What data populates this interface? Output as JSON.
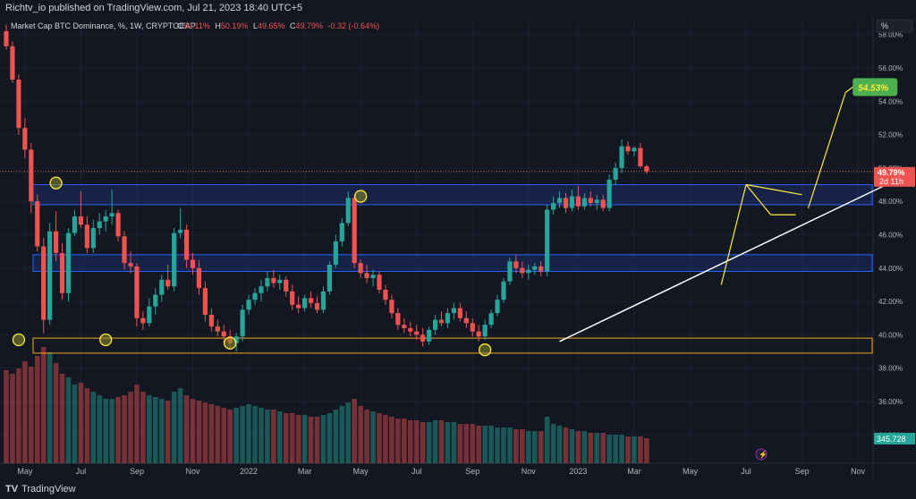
{
  "header": {
    "publisher": "Richtv_io published on TradingView.com, Jul 21, 2023 18:40 UTC+5"
  },
  "legend": {
    "symbol": "Market Cap BTC Dominance, %, 1W, CRYPTOCAP",
    "o_label": "O",
    "o_value": "50.11%",
    "h_label": "H",
    "h_value": "50.19%",
    "l_label": "L",
    "l_value": "49.65%",
    "c_label": "C",
    "c_value": "49.79%",
    "change": "-0.32 (-0.64%)"
  },
  "scale": {
    "unit_label": "%"
  },
  "footer": {
    "brand_mark": "TV",
    "brand": "TradingView"
  },
  "colors": {
    "background": "#131722",
    "up": "#26a69a",
    "down": "#ef5350",
    "zone_fill": "#1e3a8a",
    "zone_border": "#2962ff",
    "support_border": "#f5a623",
    "label_green": "#4caf50"
  },
  "chart_data": {
    "type": "candlestick",
    "timeframe": "1W",
    "ylim": [
      32.3,
      59.0
    ],
    "y_ticks": [
      "58.00%",
      "56.00%",
      "54.00%",
      "52.00%",
      "50.00%",
      "48.00%",
      "46.00%",
      "44.00%",
      "42.00%",
      "40.00%",
      "38.00%",
      "36.00%",
      "34.00%"
    ],
    "y_tick_values": [
      58,
      56,
      54,
      52,
      50,
      48,
      46,
      44,
      42,
      40,
      38,
      36,
      34
    ],
    "x_labels": [
      {
        "label": "May",
        "bar": 3
      },
      {
        "label": "Jul",
        "bar": 12
      },
      {
        "label": "Sep",
        "bar": 21
      },
      {
        "label": "Nov",
        "bar": 30
      },
      {
        "label": "2022",
        "bar": 39
      },
      {
        "label": "Mar",
        "bar": 48
      },
      {
        "label": "May",
        "bar": 57
      },
      {
        "label": "Jul",
        "bar": 66
      },
      {
        "label": "Sep",
        "bar": 75
      },
      {
        "label": "Nov",
        "bar": 84
      },
      {
        "label": "2023",
        "bar": 92
      },
      {
        "label": "Mar",
        "bar": 101
      },
      {
        "label": "May",
        "bar": 110
      },
      {
        "label": "Jul",
        "bar": 119
      },
      {
        "label": "Sep",
        "bar": 128
      },
      {
        "label": "Nov",
        "bar": 137
      }
    ],
    "last_price_label": "49.79%",
    "countdown_label": "2d 11h",
    "volume_label": "345.728",
    "target_label": "54.53%",
    "candles": [
      [
        58.2,
        58.6,
        57.1,
        57.3
      ],
      [
        57.3,
        57.6,
        55.1,
        55.3
      ],
      [
        55.3,
        55.6,
        52.0,
        52.4
      ],
      [
        52.4,
        53.0,
        50.6,
        51.1
      ],
      [
        51.1,
        51.5,
        47.3,
        48.0
      ],
      [
        48.0,
        48.4,
        45.0,
        45.3
      ],
      [
        45.3,
        45.8,
        40.1,
        40.9
      ],
      [
        40.9,
        46.7,
        40.6,
        46.2
      ],
      [
        46.2,
        47.4,
        44.4,
        44.9
      ],
      [
        44.9,
        45.5,
        42.1,
        42.5
      ],
      [
        42.5,
        46.4,
        42.0,
        46.1
      ],
      [
        46.1,
        47.5,
        45.9,
        47.1
      ],
      [
        47.1,
        48.6,
        46.4,
        46.6
      ],
      [
        46.6,
        47.1,
        44.9,
        45.2
      ],
      [
        45.2,
        46.9,
        44.9,
        46.4
      ],
      [
        46.4,
        47.3,
        46.0,
        46.8
      ],
      [
        46.8,
        47.5,
        46.2,
        47.1
      ],
      [
        47.1,
        48.7,
        46.6,
        47.3
      ],
      [
        47.3,
        47.5,
        45.6,
        45.9
      ],
      [
        45.9,
        46.2,
        43.9,
        44.3
      ],
      [
        44.3,
        45.0,
        43.7,
        44.1
      ],
      [
        44.1,
        44.3,
        40.5,
        41.0
      ],
      [
        41.0,
        41.4,
        40.3,
        40.7
      ],
      [
        40.7,
        42.2,
        40.5,
        41.7
      ],
      [
        41.7,
        42.8,
        41.2,
        42.4
      ],
      [
        42.4,
        43.6,
        42.0,
        43.3
      ],
      [
        43.3,
        44.2,
        42.7,
        42.9
      ],
      [
        42.9,
        46.4,
        42.6,
        46.1
      ],
      [
        46.1,
        47.6,
        45.8,
        46.3
      ],
      [
        46.3,
        46.6,
        44.0,
        44.5
      ],
      [
        44.5,
        44.9,
        43.6,
        44.0
      ],
      [
        44.0,
        44.5,
        42.4,
        42.8
      ],
      [
        42.8,
        43.2,
        40.8,
        41.2
      ],
      [
        41.2,
        41.6,
        40.2,
        40.5
      ],
      [
        40.5,
        40.9,
        39.9,
        40.2
      ],
      [
        40.2,
        40.6,
        39.4,
        39.9
      ],
      [
        39.9,
        40.3,
        39.2,
        39.5
      ],
      [
        39.5,
        40.1,
        39.0,
        39.9
      ],
      [
        39.9,
        41.8,
        39.6,
        41.5
      ],
      [
        41.5,
        42.4,
        41.2,
        42.1
      ],
      [
        42.1,
        42.8,
        41.8,
        42.5
      ],
      [
        42.5,
        43.3,
        42.0,
        42.9
      ],
      [
        42.9,
        43.8,
        42.6,
        43.4
      ],
      [
        43.4,
        43.9,
        42.8,
        43.1
      ],
      [
        43.1,
        43.6,
        42.7,
        43.3
      ],
      [
        43.3,
        43.5,
        42.3,
        42.6
      ],
      [
        42.6,
        43.0,
        41.5,
        41.8
      ],
      [
        41.8,
        42.3,
        41.3,
        41.6
      ],
      [
        41.6,
        42.4,
        41.4,
        42.2
      ],
      [
        42.2,
        42.6,
        41.6,
        41.9
      ],
      [
        41.9,
        42.3,
        41.3,
        41.5
      ],
      [
        41.5,
        42.9,
        41.3,
        42.6
      ],
      [
        42.6,
        44.4,
        42.4,
        44.2
      ],
      [
        44.2,
        46.0,
        44.0,
        45.6
      ],
      [
        45.6,
        47.0,
        45.3,
        46.7
      ],
      [
        46.7,
        48.6,
        46.5,
        48.2
      ],
      [
        48.2,
        48.4,
        44.0,
        44.3
      ],
      [
        44.3,
        44.5,
        43.4,
        43.7
      ],
      [
        43.7,
        44.2,
        43.1,
        43.4
      ],
      [
        43.4,
        43.9,
        42.9,
        43.6
      ],
      [
        43.6,
        43.8,
        42.5,
        42.7
      ],
      [
        42.7,
        43.0,
        41.8,
        42.1
      ],
      [
        42.1,
        42.4,
        41.0,
        41.3
      ],
      [
        41.3,
        41.6,
        40.3,
        40.6
      ],
      [
        40.6,
        41.0,
        40.1,
        40.4
      ],
      [
        40.4,
        40.8,
        39.9,
        40.2
      ],
      [
        40.2,
        40.6,
        39.7,
        40.0
      ],
      [
        40.0,
        40.4,
        39.3,
        39.6
      ],
      [
        39.6,
        40.5,
        39.4,
        40.3
      ],
      [
        40.3,
        41.2,
        40.0,
        40.9
      ],
      [
        40.9,
        41.4,
        40.5,
        40.7
      ],
      [
        40.7,
        41.6,
        40.4,
        41.3
      ],
      [
        41.3,
        41.9,
        40.9,
        41.6
      ],
      [
        41.6,
        41.9,
        40.8,
        41.0
      ],
      [
        41.0,
        41.4,
        40.4,
        40.7
      ],
      [
        40.7,
        41.0,
        39.9,
        40.2
      ],
      [
        40.2,
        40.6,
        39.6,
        39.9
      ],
      [
        39.9,
        40.9,
        39.7,
        40.6
      ],
      [
        40.6,
        41.5,
        40.4,
        41.3
      ],
      [
        41.3,
        42.4,
        41.1,
        42.1
      ],
      [
        42.1,
        43.4,
        41.9,
        43.2
      ],
      [
        43.2,
        44.6,
        43.0,
        44.4
      ],
      [
        44.4,
        44.8,
        43.7,
        44.0
      ],
      [
        44.0,
        44.4,
        43.4,
        43.7
      ],
      [
        43.7,
        44.2,
        43.3,
        43.9
      ],
      [
        43.9,
        44.3,
        43.6,
        44.1
      ],
      [
        44.1,
        44.4,
        43.5,
        43.8
      ],
      [
        43.8,
        47.8,
        43.5,
        47.5
      ],
      [
        47.5,
        48.3,
        47.2,
        47.9
      ],
      [
        47.9,
        48.6,
        47.6,
        48.2
      ],
      [
        48.2,
        48.5,
        47.3,
        47.6
      ],
      [
        47.6,
        48.7,
        47.4,
        48.3
      ],
      [
        48.3,
        48.9,
        47.5,
        47.7
      ],
      [
        47.7,
        48.5,
        47.5,
        48.2
      ],
      [
        48.2,
        48.6,
        47.7,
        47.9
      ],
      [
        47.9,
        48.4,
        47.5,
        48.1
      ],
      [
        48.1,
        48.4,
        47.4,
        47.6
      ],
      [
        47.6,
        49.6,
        47.4,
        49.3
      ],
      [
        49.3,
        50.3,
        49.0,
        50.0
      ],
      [
        50.0,
        51.7,
        49.7,
        51.3
      ],
      [
        51.3,
        51.6,
        50.8,
        51.0
      ],
      [
        51.0,
        51.3,
        50.7,
        51.2
      ],
      [
        51.2,
        51.5,
        50.0,
        50.1
      ],
      [
        50.1,
        50.2,
        49.65,
        49.79
      ]
    ],
    "volumes": [
      52,
      50,
      53,
      57,
      54,
      60,
      65,
      62,
      56,
      50,
      48,
      44,
      45,
      42,
      40,
      38,
      36,
      36,
      37,
      38,
      40,
      44,
      40,
      38,
      37,
      36,
      35,
      40,
      42,
      38,
      36,
      35,
      34,
      33,
      32,
      31,
      30,
      31,
      32,
      33,
      32,
      31,
      30,
      30,
      29,
      28,
      28,
      27,
      27,
      26,
      26,
      27,
      28,
      30,
      32,
      34,
      36,
      32,
      30,
      29,
      28,
      27,
      26,
      25,
      25,
      24,
      24,
      23,
      23,
      24,
      24,
      23,
      23,
      22,
      22,
      22,
      21,
      21,
      21,
      20,
      20,
      20,
      19,
      19,
      18,
      18,
      18,
      26,
      22,
      21,
      20,
      19,
      18,
      18,
      17,
      17,
      17,
      16,
      16,
      16,
      15,
      15,
      15,
      14
    ],
    "zones": [
      {
        "low": 47.8,
        "high": 49.0,
        "color": "blue"
      },
      {
        "low": 43.8,
        "high": 44.8,
        "color": "blue"
      },
      {
        "low": 38.9,
        "high": 39.8,
        "color": "orange"
      }
    ],
    "last_price_line": 49.79,
    "circles": [
      {
        "bar": 8,
        "value": 49.1
      },
      {
        "bar": 2,
        "value": 39.7
      },
      {
        "bar": 16,
        "value": 39.7
      },
      {
        "bar": 36,
        "value": 39.5
      },
      {
        "bar": 57,
        "value": 48.3
      },
      {
        "bar": 77,
        "value": 39.1
      }
    ],
    "trendline": [
      {
        "bar": 89,
        "value": 39.6
      },
      {
        "bar": 141,
        "value": 48.9
      }
    ],
    "pennant": {
      "pole_start": {
        "bar": 115,
        "value": 43.0
      },
      "pole_end": {
        "bar": 119,
        "value": 49.0
      },
      "upper_end": {
        "bar": 128,
        "value": 48.4
      },
      "lower_end": {
        "bar": 127,
        "value": 47.2
      }
    },
    "projection": [
      {
        "bar": 129,
        "value": 47.6
      },
      {
        "bar": 135,
        "value": 54.53
      }
    ]
  }
}
